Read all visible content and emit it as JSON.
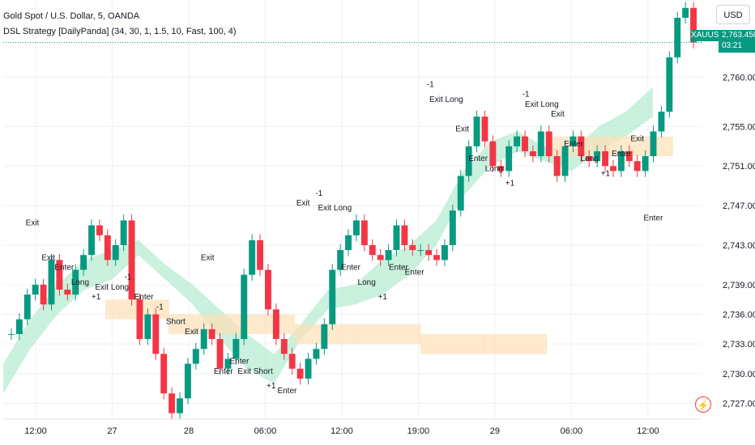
{
  "header": {
    "symbol_line": "Gold Spot / U.S. Dollar, 5, OANDA",
    "indicator_line": "DSL Strategy [DailyPanda] (34, 30, 1, 1.5, 10, Fast, 100, 4)"
  },
  "currency_button": "USD",
  "price_tag": {
    "symbol": "XAUUSD",
    "price": "2,763.450",
    "countdown": "03:21"
  },
  "icons": {
    "alert": "lightning-icon"
  },
  "colors": {
    "up": "#089981",
    "down": "#f23645",
    "band_green": "#b2ebcf",
    "band_orange": "#fde0b6",
    "grid": "#eef0f5"
  },
  "chart_data": {
    "type": "candlestick",
    "yaxis": {
      "ticks": [
        "2,727.000",
        "2,730.000",
        "2,733.000",
        "2,736.000",
        "2,739.000",
        "2,743.000",
        "2,747.000",
        "2,751.000",
        "2,755.000",
        "2,760.000"
      ],
      "tick_values": [
        2727,
        2730,
        2733,
        2736,
        2739,
        2743,
        2747,
        2751,
        2755,
        2760
      ],
      "ylim": [
        2725.4,
        2767.8
      ]
    },
    "xaxis": {
      "ticks": [
        "12:00",
        "27",
        "28",
        "06:00",
        "12:00",
        "19:00",
        "29",
        "06:00",
        "12:00"
      ]
    },
    "grid": true,
    "price_series_closes": [
      2734.0,
      2735.5,
      2738.0,
      2739.0,
      2737.0,
      2741.5,
      2738.5,
      2738.0,
      2740.5,
      2742.0,
      2745.0,
      2744.0,
      2741.5,
      2743.0,
      2745.5,
      2737.5,
      2733.5,
      2736.0,
      2732.0,
      2728.0,
      2726.0,
      2727.5,
      2731.0,
      2732.5,
      2734.5,
      2733.5,
      2730.5,
      2731.5,
      2733.5,
      2740.0,
      2743.5,
      2740.5,
      2736.5,
      2733.5,
      2732.0,
      2730.5,
      2729.5,
      2731.5,
      2732.5,
      2735.0,
      2740.5,
      2742.5,
      2744.0,
      2745.5,
      2743.0,
      2742.0,
      2741.5,
      2742.5,
      2745.0,
      2743.0,
      2742.5,
      2742.5,
      2742.0,
      2741.5,
      2743.0,
      2746.5,
      2750.0,
      2753.0,
      2756.0,
      2753.5,
      2751.0,
      2750.5,
      2753.0,
      2754.0,
      2752.5,
      2752.0,
      2754.5,
      2752.0,
      2750.0,
      2753.0,
      2754.0,
      2752.0,
      2751.5,
      2752.5,
      2751.0,
      2750.5,
      2752.5,
      2751.5,
      2750.5,
      2752.0,
      2754.5,
      2756.5,
      2762.0,
      2766.0,
      2767.0,
      2763.5
    ],
    "band_green": [
      [
        2728.0,
        2731.0
      ],
      [
        2732.5,
        2735.5
      ],
      [
        2736.0,
        2739.0
      ],
      [
        2738.5,
        2741.5
      ],
      [
        2739.5,
        2742.5
      ],
      [
        2742.0,
        2743.5
      ],
      [
        2739.5,
        2741.0
      ],
      [
        2737.0,
        2739.0
      ],
      [
        2733.5,
        2736.5
      ],
      [
        2730.5,
        2734.0
      ],
      [
        2729.0,
        2732.0
      ],
      [
        2733.5,
        2735.0
      ],
      [
        2736.5,
        2738.5
      ],
      [
        2737.0,
        2739.0
      ],
      [
        2738.0,
        2741.5
      ],
      [
        2740.0,
        2743.0
      ],
      [
        2743.0,
        2745.5
      ],
      [
        2748.0,
        2750.5
      ],
      [
        2751.0,
        2753.5
      ],
      [
        2752.5,
        2754.5
      ],
      [
        2751.5,
        2753.0
      ],
      [
        2750.5,
        2752.5
      ],
      [
        2752.5,
        2755.0
      ],
      [
        2754.0,
        2756.5
      ],
      [
        2756.0,
        2759.0
      ]
    ],
    "band_orange": [
      [
        2735.5,
        2737.5
      ],
      [
        2734.0,
        2736.0
      ],
      [
        2734.0,
        2736.0
      ],
      [
        2733.0,
        2735.0
      ],
      [
        2733.0,
        2735.0
      ],
      [
        2732.0,
        2734.0
      ],
      [
        2732.0,
        2734.0
      ],
      [
        2752.0,
        2754.0
      ],
      [
        2752.0,
        2754.0
      ]
    ],
    "signals": [
      {
        "text": "Exit",
        "price": 2745.0
      },
      {
        "text": "Exit",
        "price": 2741.5
      },
      {
        "text": "Enter",
        "price": 2740.5
      },
      {
        "text": "Long",
        "price": 2739.0
      },
      {
        "text": "+1",
        "price": 2737.5
      },
      {
        "text": "Exit Long",
        "price": 2738.5
      },
      {
        "text": "-1",
        "price": 2739.5
      },
      {
        "text": "Enter",
        "price": 2737.5
      },
      {
        "text": "-1",
        "price": 2736.5
      },
      {
        "text": "Short",
        "price": 2735.0
      },
      {
        "text": "Exit",
        "price": 2734.0
      },
      {
        "text": "Exit",
        "price": 2741.5
      },
      {
        "text": "Enter",
        "price": 2730.0
      },
      {
        "text": "Enter",
        "price": 2731.0
      },
      {
        "text": "Exit Short",
        "price": 2730.0
      },
      {
        "text": "+1",
        "price": 2728.5
      },
      {
        "text": "Enter",
        "price": 2728.0
      },
      {
        "text": "Exit",
        "price": 2747.0
      },
      {
        "text": "-1",
        "price": 2748.0
      },
      {
        "text": "Exit Long",
        "price": 2746.5
      },
      {
        "text": "Enter",
        "price": 2740.5
      },
      {
        "text": "Long",
        "price": 2739.0
      },
      {
        "text": "+1",
        "price": 2737.5
      },
      {
        "text": "Enter",
        "price": 2740.5
      },
      {
        "text": "Enter",
        "price": 2740.0
      },
      {
        "text": "-1",
        "price": 2759.0
      },
      {
        "text": "Exit Long",
        "price": 2757.5
      },
      {
        "text": "Exit",
        "price": 2754.5
      },
      {
        "text": "Enter",
        "price": 2751.5
      },
      {
        "text": "Long",
        "price": 2750.5
      },
      {
        "text": "+1",
        "price": 2749.0
      },
      {
        "text": "-1",
        "price": 2758.0
      },
      {
        "text": "Exit Long",
        "price": 2757.0
      },
      {
        "text": "Exit",
        "price": 2756.0
      },
      {
        "text": "Enter",
        "price": 2753.0
      },
      {
        "text": "Long",
        "price": 2751.5
      },
      {
        "text": "+1",
        "price": 2750.0
      },
      {
        "text": "Enter",
        "price": 2752.0
      },
      {
        "text": "Exit",
        "price": 2753.5
      },
      {
        "text": "Enter",
        "price": 2745.5
      }
    ]
  }
}
